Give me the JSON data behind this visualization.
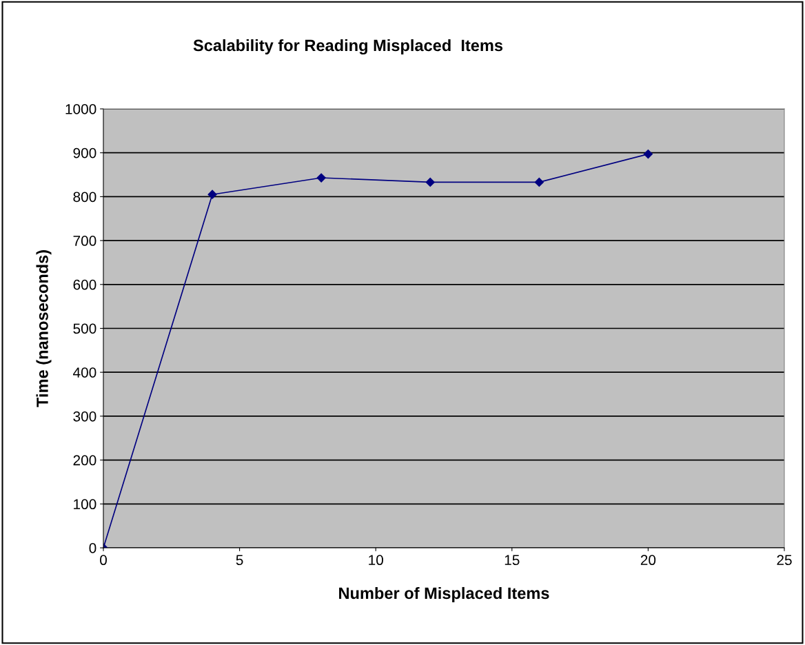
{
  "chart_data": {
    "type": "line",
    "title": "Scalability for Reading Misplaced  Items",
    "xlabel": "Number of Misplaced Items",
    "ylabel": "Time (nanoseconds)",
    "x": [
      0,
      4,
      8,
      12,
      16,
      20
    ],
    "series": [
      {
        "color": "#000080",
        "values": [
          0,
          805,
          843,
          833,
          833,
          897
        ]
      }
    ],
    "xlim": [
      0,
      25
    ],
    "xticks": [
      0,
      5,
      10,
      15,
      20,
      25
    ],
    "ylim": [
      0,
      1000
    ],
    "yticks": [
      0,
      100,
      200,
      300,
      400,
      500,
      600,
      700,
      800,
      900,
      1000
    ],
    "grid": "y",
    "marker": "diamond",
    "line_style": "solid",
    "legend": false
  }
}
